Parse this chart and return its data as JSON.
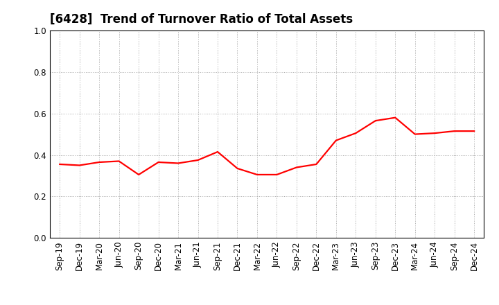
{
  "title": "[6428]  Trend of Turnover Ratio of Total Assets",
  "x_labels": [
    "Sep-19",
    "Dec-19",
    "Mar-20",
    "Jun-20",
    "Sep-20",
    "Dec-20",
    "Mar-21",
    "Jun-21",
    "Sep-21",
    "Dec-21",
    "Mar-22",
    "Jun-22",
    "Sep-22",
    "Dec-22",
    "Mar-23",
    "Jun-23",
    "Sep-23",
    "Dec-23",
    "Mar-24",
    "Jun-24",
    "Sep-24",
    "Dec-24"
  ],
  "y_values": [
    0.355,
    0.35,
    0.365,
    0.37,
    0.305,
    0.365,
    0.36,
    0.375,
    0.415,
    0.335,
    0.305,
    0.305,
    0.34,
    0.355,
    0.47,
    0.505,
    0.565,
    0.58,
    0.5,
    0.505,
    0.515,
    0.515
  ],
  "line_color": "#FF0000",
  "line_width": 1.6,
  "ylim": [
    0.0,
    1.0
  ],
  "yticks": [
    0.0,
    0.2,
    0.4,
    0.6,
    0.8,
    1.0
  ],
  "grid_color": "#AAAAAA",
  "background_color": "#FFFFFF",
  "title_fontsize": 12,
  "tick_fontsize": 8.5
}
